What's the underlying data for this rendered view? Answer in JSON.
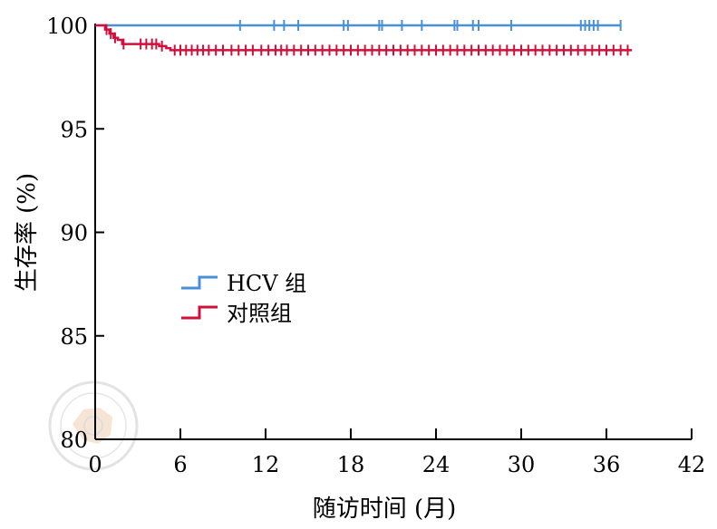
{
  "chart_data": {
    "type": "line",
    "title": "",
    "xlabel": "随访时间 (月)",
    "ylabel": "生存率 (%)",
    "xlim": [
      0,
      42
    ],
    "ylim": [
      80,
      100
    ],
    "x_ticks": [
      0,
      6,
      12,
      18,
      24,
      30,
      36,
      42
    ],
    "y_ticks": [
      80,
      85,
      90,
      95,
      100
    ],
    "legend_position": "center-left",
    "grid": false,
    "series": [
      {
        "name": "HCV 组",
        "color": "#4a90d9",
        "steps": [
          [
            0,
            100
          ],
          [
            37,
            100
          ]
        ],
        "censor_x": [
          10.2,
          12.6,
          13.3,
          14.3,
          17.5,
          17.8,
          20.0,
          20.2,
          21.6,
          23.0,
          25.3,
          25.5,
          26.6,
          27.0,
          29.3,
          34.2,
          34.5,
          34.8,
          35.1,
          35.4,
          37.0
        ]
      },
      {
        "name": "对照组",
        "color": "#d0103a",
        "steps": [
          [
            0,
            100
          ],
          [
            0.7,
            99.8
          ],
          [
            1.0,
            99.6
          ],
          [
            1.3,
            99.4
          ],
          [
            1.6,
            99.3
          ],
          [
            1.9,
            99.1
          ],
          [
            4.5,
            99.0
          ],
          [
            5.0,
            98.9
          ],
          [
            5.3,
            98.8
          ],
          [
            37.8,
            98.8
          ]
        ],
        "censor_x": [
          0.8,
          1.1,
          1.4,
          2.0,
          3.2,
          3.6,
          4.0,
          4.3,
          4.7,
          5.6,
          6.0,
          6.4,
          6.8,
          7.2,
          7.6,
          8.0,
          8.5,
          9.0,
          9.6,
          10.1,
          10.6,
          11.1,
          11.7,
          12.2,
          12.7,
          13.1,
          13.5,
          14.0,
          14.5,
          15.0,
          15.5,
          16.0,
          16.5,
          17.0,
          17.5,
          18.0,
          18.5,
          19.0,
          19.5,
          20.0,
          20.5,
          21.0,
          21.5,
          22.0,
          22.5,
          23.0,
          23.5,
          24.0,
          24.5,
          25.0,
          25.5,
          26.0,
          26.5,
          27.0,
          27.5,
          28.0,
          28.5,
          29.0,
          29.5,
          30.0,
          30.5,
          31.0,
          31.5,
          32.0,
          32.5,
          33.0,
          33.5,
          34.0,
          34.5,
          35.0,
          35.5,
          36.0,
          36.5,
          37.0,
          37.5
        ]
      }
    ]
  }
}
